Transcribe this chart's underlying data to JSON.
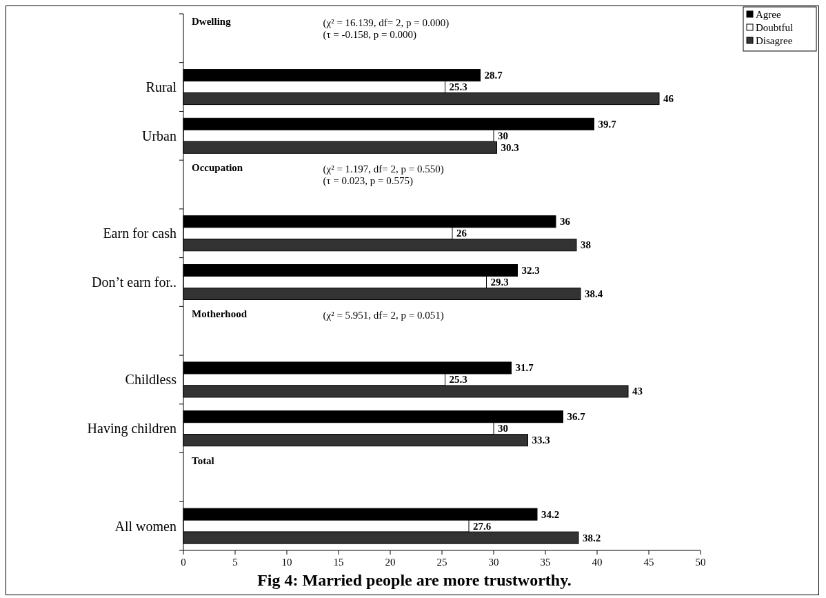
{
  "chart_data": {
    "type": "bar",
    "orientation": "horizontal",
    "title": "Fig 4: Married people are more trustworthy.",
    "categories": [
      "Dwelling",
      "Rural",
      "Urban",
      "Occupation",
      "Earn for cash",
      "Don’t earn for..",
      "Motherhood",
      "Childless",
      "Having children",
      "Total",
      "All women"
    ],
    "series": [
      {
        "name": "Agree",
        "color": "#000000",
        "values": [
          null,
          28.7,
          39.7,
          null,
          36,
          32.3,
          null,
          31.7,
          36.7,
          null,
          34.2
        ]
      },
      {
        "name": "Doubtful",
        "color": "#ffffff",
        "values": [
          null,
          25.3,
          30,
          null,
          26,
          29.3,
          null,
          25.3,
          30,
          null,
          27.6
        ]
      },
      {
        "name": "Disagree",
        "color": "#333333",
        "values": [
          null,
          46,
          30.3,
          null,
          38,
          38.4,
          null,
          43,
          33.3,
          null,
          38.2
        ]
      }
    ],
    "xlim": [
      0,
      50
    ],
    "xticks": [
      0,
      5,
      10,
      15,
      20,
      25,
      30,
      35,
      40,
      45,
      50
    ],
    "data_labels": true,
    "legend": "top right",
    "grid": false,
    "annotations": [
      "(χ² = 16.139, df= 2, p = 0.000)\n(τ = -0.158, p = 0.000)",
      "(χ² = 1.197, df= 2, p = 0.550)\n(τ = 0.023, p = 0.575)",
      "(χ² = 5.951, df= 2, p = 0.051)"
    ]
  }
}
